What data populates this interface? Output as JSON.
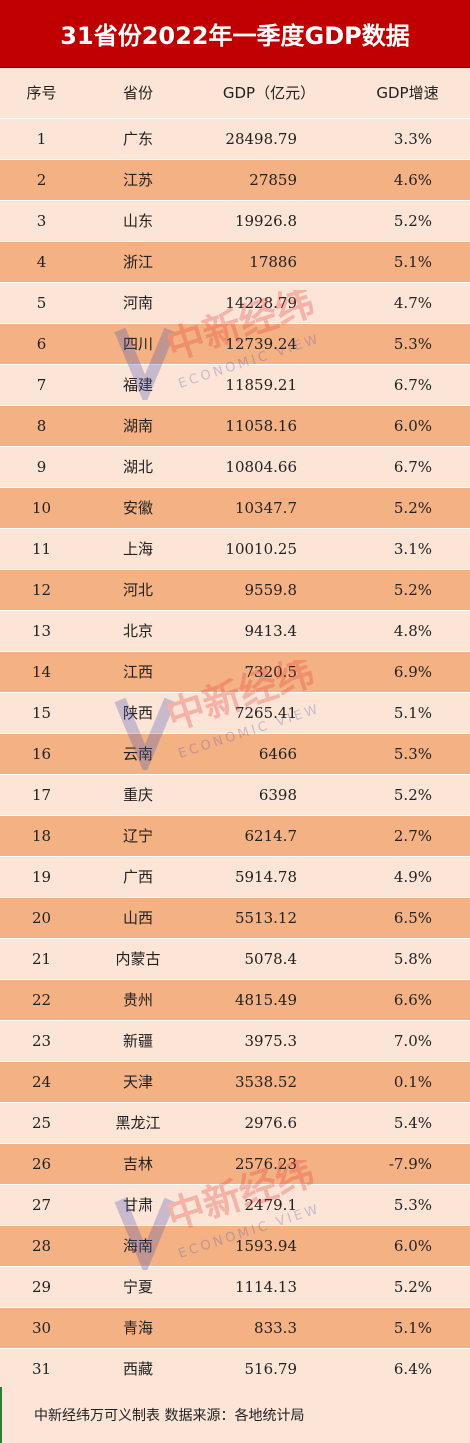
{
  "title": "31省份2022年一季度GDP数据",
  "headers": {
    "rank": "序号",
    "province": "省份",
    "gdp": "GDP（亿元）",
    "growth": "GDP增速"
  },
  "rows": [
    {
      "rank": "1",
      "province": "广东",
      "gdp": "28498.79",
      "growth": "3.3%"
    },
    {
      "rank": "2",
      "province": "江苏",
      "gdp": "27859",
      "growth": "4.6%"
    },
    {
      "rank": "3",
      "province": "山东",
      "gdp": "19926.8",
      "growth": "5.2%"
    },
    {
      "rank": "4",
      "province": "浙江",
      "gdp": "17886",
      "growth": "5.1%"
    },
    {
      "rank": "5",
      "province": "河南",
      "gdp": "14228.79",
      "growth": "4.7%"
    },
    {
      "rank": "6",
      "province": "四川",
      "gdp": "12739.24",
      "growth": "5.3%"
    },
    {
      "rank": "7",
      "province": "福建",
      "gdp": "11859.21",
      "growth": "6.7%"
    },
    {
      "rank": "8",
      "province": "湖南",
      "gdp": "11058.16",
      "growth": "6.0%"
    },
    {
      "rank": "9",
      "province": "湖北",
      "gdp": "10804.66",
      "growth": "6.7%"
    },
    {
      "rank": "10",
      "province": "安徽",
      "gdp": "10347.7",
      "growth": "5.2%"
    },
    {
      "rank": "11",
      "province": "上海",
      "gdp": "10010.25",
      "growth": "3.1%"
    },
    {
      "rank": "12",
      "province": "河北",
      "gdp": "9559.8",
      "growth": "5.2%"
    },
    {
      "rank": "13",
      "province": "北京",
      "gdp": "9413.4",
      "growth": "4.8%"
    },
    {
      "rank": "14",
      "province": "江西",
      "gdp": "7320.5",
      "growth": "6.9%"
    },
    {
      "rank": "15",
      "province": "陕西",
      "gdp": "7265.41",
      "growth": "5.1%"
    },
    {
      "rank": "16",
      "province": "云南",
      "gdp": "6466",
      "growth": "5.3%"
    },
    {
      "rank": "17",
      "province": "重庆",
      "gdp": "6398",
      "growth": "5.2%"
    },
    {
      "rank": "18",
      "province": "辽宁",
      "gdp": "6214.7",
      "growth": "2.7%"
    },
    {
      "rank": "19",
      "province": "广西",
      "gdp": "5914.78",
      "growth": "4.9%"
    },
    {
      "rank": "20",
      "province": "山西",
      "gdp": "5513.12",
      "growth": "6.5%"
    },
    {
      "rank": "21",
      "province": "内蒙古",
      "gdp": "5078.4",
      "growth": "5.8%"
    },
    {
      "rank": "22",
      "province": "贵州",
      "gdp": "4815.49",
      "growth": "6.6%"
    },
    {
      "rank": "23",
      "province": "新疆",
      "gdp": "3975.3",
      "growth": "7.0%"
    },
    {
      "rank": "24",
      "province": "天津",
      "gdp": "3538.52",
      "growth": "0.1%"
    },
    {
      "rank": "25",
      "province": "黑龙江",
      "gdp": "2976.6",
      "growth": "5.4%"
    },
    {
      "rank": "26",
      "province": "吉林",
      "gdp": "2576.23",
      "growth": "-7.9%"
    },
    {
      "rank": "27",
      "province": "甘肃",
      "gdp": "2479.1",
      "growth": "5.3%"
    },
    {
      "rank": "28",
      "province": "海南",
      "gdp": "1593.94",
      "growth": "6.0%"
    },
    {
      "rank": "29",
      "province": "宁夏",
      "gdp": "1114.13",
      "growth": "5.2%"
    },
    {
      "rank": "30",
      "province": "青海",
      "gdp": "833.3",
      "growth": "5.1%"
    },
    {
      "rank": "31",
      "province": "西藏",
      "gdp": "516.79",
      "growth": "6.4%"
    }
  ],
  "footer": "中新经纬万可义制表  数据来源：各地统计局",
  "watermark": {
    "brand": "中新经纬",
    "english": "ECONOMIC VIEW",
    "colors": {
      "red": "#e53935",
      "blue": "#3f51b5"
    }
  },
  "colors": {
    "title_bg": "#c00000",
    "row_light": "#fce4d6",
    "row_dark": "#f4b183"
  }
}
